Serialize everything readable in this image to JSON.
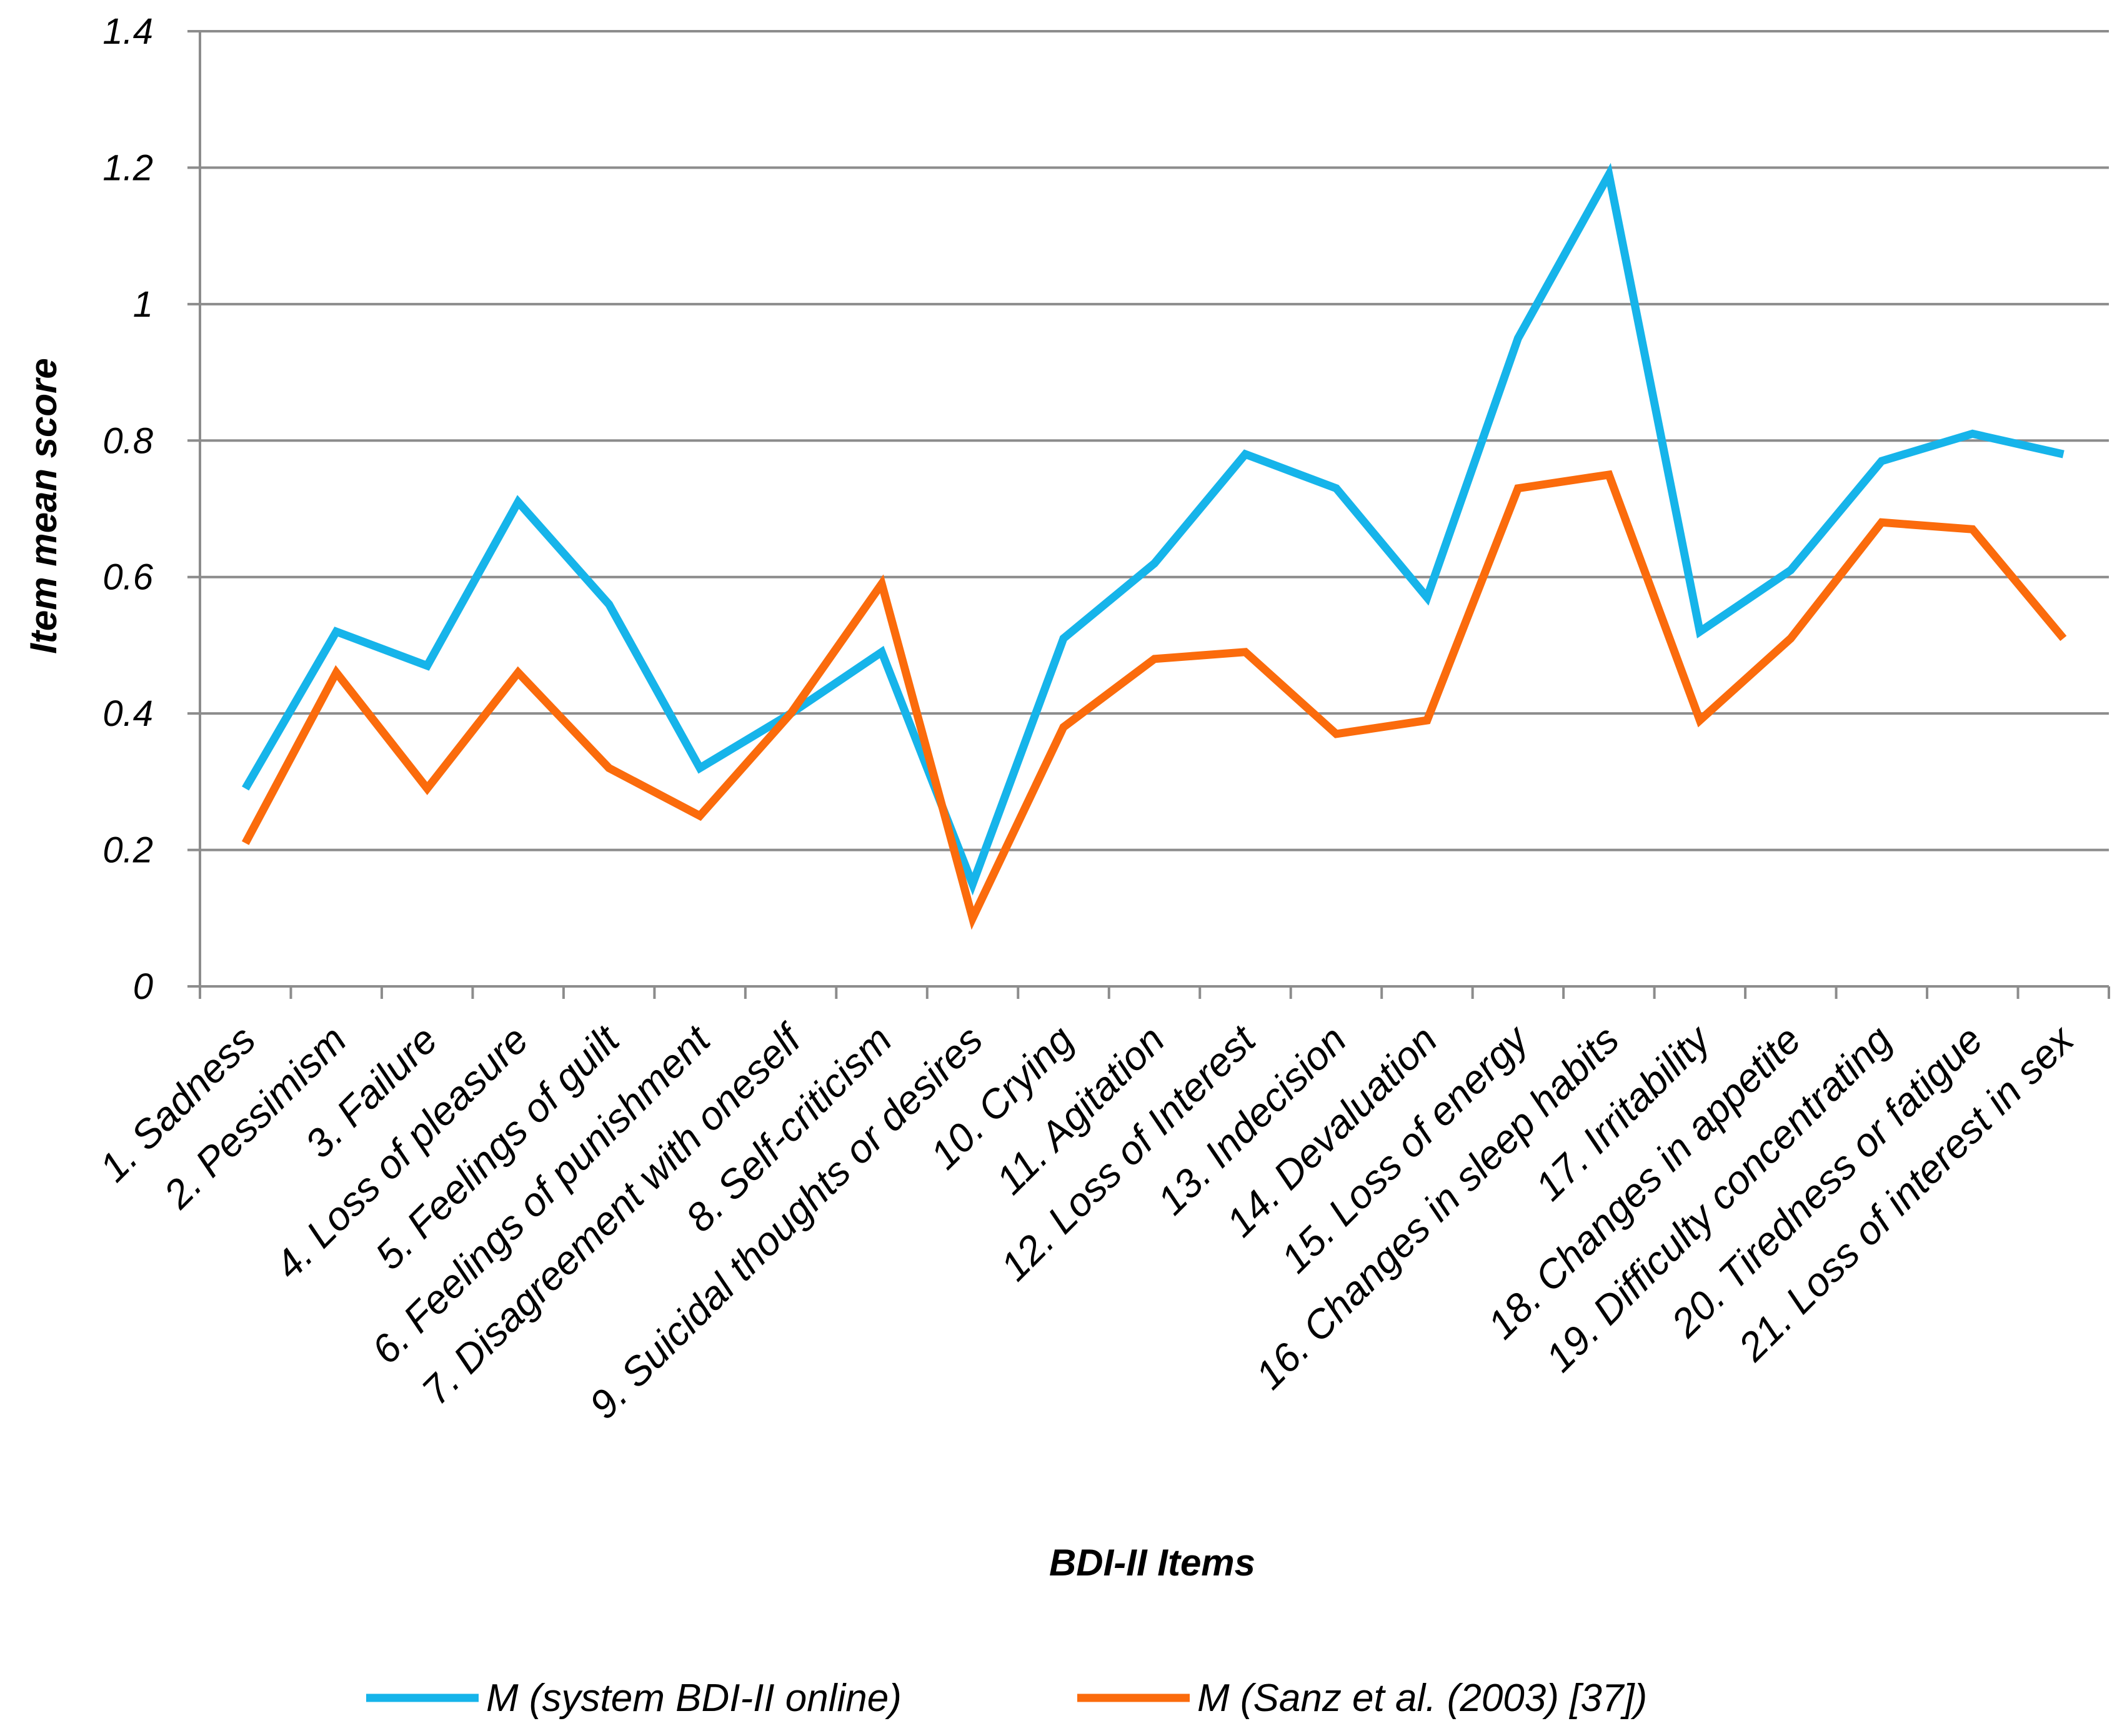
{
  "chart_data": {
    "type": "line",
    "title": "",
    "xlabel": "BDI-II Items",
    "ylabel": "Item mean score",
    "ylim": [
      0,
      1.4
    ],
    "ytick_step": 0.2,
    "yticks": [
      "0",
      "0.2",
      "0.4",
      "0.6",
      "0.8",
      "1",
      "1.2",
      "1.4"
    ],
    "grid": true,
    "legend_position": "bottom",
    "categories": [
      "1. Sadness",
      "2. Pessimism",
      "3. Failure",
      "4. Loss of pleasure",
      "5. Feelings of guilt",
      "6. Feelings of punishment",
      "7. Disagreement with oneself",
      "8. Self-criticism",
      "9. Suicidal thoughts or desires",
      "10. Crying",
      "11. Agitation",
      "12. Loss of Interest",
      "13. Indecision",
      "14. Devaluation",
      "15. Loss of energy",
      "16. Changes in sleep habits",
      "17. Irritability",
      "18. Changes in appetite",
      "19. Difficulty concentrating",
      "20. Tiredness or fatigue",
      "21. Loss of interest in sex"
    ],
    "series": [
      {
        "name": "M (system BDI-II online)",
        "color": "#16b4ea",
        "values": [
          0.29,
          0.52,
          0.47,
          0.71,
          0.56,
          0.32,
          0.4,
          0.49,
          0.15,
          0.51,
          0.62,
          0.78,
          0.73,
          0.57,
          0.95,
          1.19,
          0.52,
          0.61,
          0.77,
          0.81,
          0.78
        ]
      },
      {
        "name": "M (Sanz et al. (2003) [37])",
        "color": "#fb6b0c",
        "values": [
          0.21,
          0.46,
          0.29,
          0.46,
          0.32,
          0.25,
          0.4,
          0.59,
          0.1,
          0.38,
          0.48,
          0.49,
          0.37,
          0.39,
          0.73,
          0.75,
          0.39,
          0.51,
          0.68,
          0.67,
          0.51
        ]
      }
    ],
    "grid_color": "#8c8c8c",
    "axis_color": "#8c8c8c"
  }
}
